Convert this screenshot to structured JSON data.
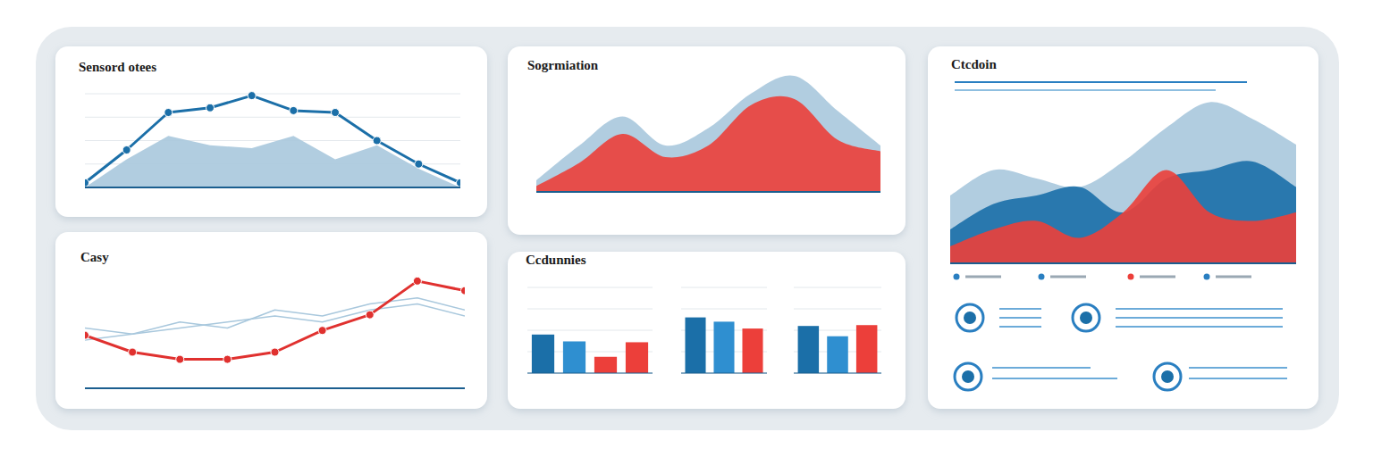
{
  "chart_data": [
    {
      "type": "line",
      "title": "Sensord otees",
      "categories": [
        null,
        null,
        null,
        null,
        null,
        null,
        null,
        null,
        null,
        null
      ],
      "series": [
        {
          "type": "area",
          "color": "#a9c8dd",
          "line_style": "straight",
          "values": [
            0,
            30,
            55,
            45,
            42,
            55,
            30,
            45,
            20,
            0
          ]
        },
        {
          "type": "line",
          "color": "#1b6fa8",
          "marker": "circle",
          "line_style": "straight",
          "values": [
            5,
            40,
            80,
            85,
            98,
            82,
            80,
            50,
            25,
            5
          ]
        }
      ],
      "ylim": [
        0,
        100
      ],
      "yticks": [
        0,
        25,
        50,
        75,
        100
      ],
      "grid": true,
      "tick_labels": false
    },
    {
      "type": "area",
      "title": "Sogrmiation",
      "categories": [
        null,
        null,
        null,
        null,
        null,
        null,
        null,
        null,
        null
      ],
      "series": [
        {
          "type": "area",
          "color": "#a9c8dd",
          "line_style": "smooth",
          "values": [
            10,
            40,
            65,
            40,
            55,
            85,
            100,
            70,
            40
          ]
        },
        {
          "type": "area",
          "color": "#ec3f3a",
          "line_style": "smooth",
          "values": [
            5,
            25,
            50,
            30,
            40,
            75,
            80,
            45,
            35
          ]
        }
      ],
      "ylim": [
        0,
        100
      ],
      "yticks": [
        0,
        25,
        50,
        75,
        100
      ],
      "grid": false,
      "tick_labels": false
    },
    {
      "type": "area",
      "title": "Ctcdoin",
      "categories": [
        null,
        null,
        null,
        null,
        null,
        null,
        null,
        null,
        null
      ],
      "series": [
        {
          "type": "area",
          "color": "#a9c8dd",
          "line_style": "smooth",
          "values": [
            40,
            55,
            50,
            45,
            60,
            80,
            95,
            85,
            70
          ]
        },
        {
          "type": "area",
          "color": "#1b6fa8",
          "line_style": "smooth",
          "values": [
            20,
            35,
            40,
            45,
            30,
            50,
            55,
            60,
            45
          ]
        },
        {
          "type": "area",
          "color": "#ec3f3a",
          "line_style": "smooth",
          "values": [
            10,
            20,
            25,
            15,
            30,
            55,
            30,
            25,
            30
          ]
        }
      ],
      "ylim": [
        0,
        100
      ],
      "yticks": [
        0,
        25,
        50,
        75,
        100
      ],
      "grid": false,
      "tick_labels": false
    },
    {
      "type": "line",
      "title": "Casy",
      "categories": [
        null,
        null,
        null,
        null,
        null,
        null,
        null,
        null,
        null
      ],
      "series": [
        {
          "type": "line",
          "color": "#a9c8dd",
          "line_style": "straight",
          "values": [
            40,
            45,
            50,
            55,
            60,
            55,
            65,
            70,
            60
          ]
        },
        {
          "type": "line",
          "color": "#a9c8dd",
          "line_style": "straight",
          "values": [
            50,
            45,
            55,
            50,
            65,
            60,
            70,
            75,
            65
          ]
        },
        {
          "type": "line",
          "color": "#e0312f",
          "marker": "circle",
          "line_style": "straight",
          "values": [
            44,
            30,
            24,
            24,
            30,
            48,
            61,
            89,
            81
          ]
        }
      ],
      "ylim": [
        0,
        100
      ],
      "yticks": [
        0,
        25,
        50,
        75,
        100
      ],
      "grid": false,
      "tick_labels": false
    },
    {
      "type": "bar",
      "title": "Ccdunnies",
      "categories": [
        null,
        null,
        null,
        null
      ],
      "values": [
        45,
        37,
        19,
        36
      ],
      "colors": [
        "#1b6fa8",
        "#2f8fd0",
        "#ec3f3a",
        "#ec3f3a"
      ],
      "ylim": [
        0,
        100
      ],
      "yticks": [
        0,
        25,
        50,
        75,
        100
      ],
      "grid": true,
      "tick_labels": false
    },
    {
      "type": "bar",
      "categories": [
        null,
        null,
        null
      ],
      "values": [
        65,
        60,
        52
      ],
      "colors": [
        "#1b6fa8",
        "#2f8fd0",
        "#ec3f3a"
      ],
      "ylim": [
        0,
        100
      ],
      "yticks": [
        0,
        25,
        50,
        75,
        100
      ],
      "grid": true,
      "tick_labels": false
    },
    {
      "type": "bar",
      "categories": [
        null,
        null,
        null
      ],
      "values": [
        55,
        43,
        56
      ],
      "colors": [
        "#1b6fa8",
        "#2f8fd0",
        "#ec3f3a"
      ],
      "ylim": [
        0,
        100
      ],
      "yticks": [
        0,
        25,
        50,
        75,
        100
      ],
      "grid": true,
      "tick_labels": false
    }
  ]
}
